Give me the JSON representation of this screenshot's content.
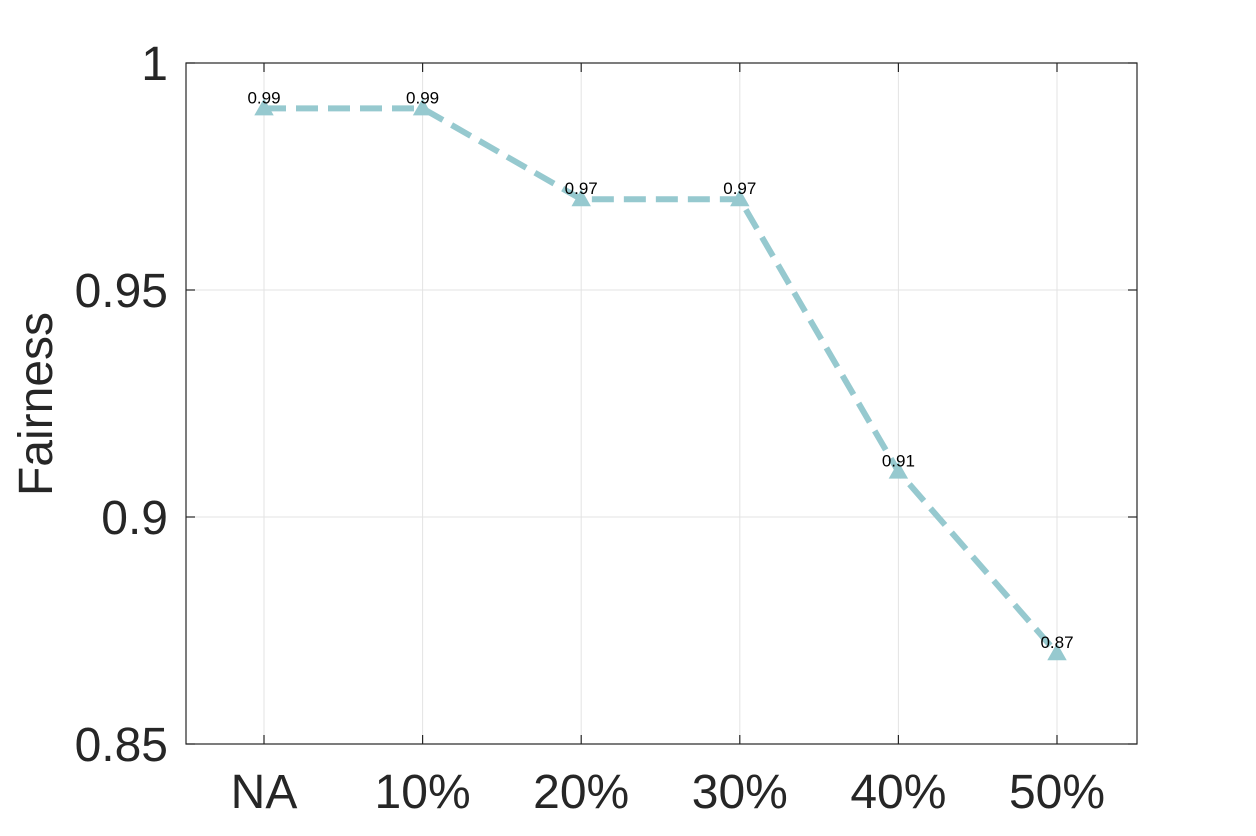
{
  "chart_data": {
    "type": "line",
    "categories": [
      "NA",
      "10%",
      "20%",
      "30%",
      "40%",
      "50%"
    ],
    "series": [
      {
        "values": [
          0.99,
          0.99,
          0.97,
          0.97,
          0.91,
          0.87
        ]
      }
    ],
    "data_labels": [
      "0.99",
      "0.99",
      "0.97",
      "0.97",
      "0.91",
      "0.87"
    ],
    "title": "",
    "xlabel": "",
    "ylabel": "Fairness",
    "ylim": [
      0.85,
      1
    ],
    "yticks": [
      0.85,
      0.9,
      0.95,
      1
    ],
    "ytick_labels": [
      "0.85",
      "0.9",
      "0.95",
      "1"
    ],
    "grid": true,
    "line_style": "dashed",
    "marker": "triangle-up",
    "color": "#96c9cf"
  }
}
